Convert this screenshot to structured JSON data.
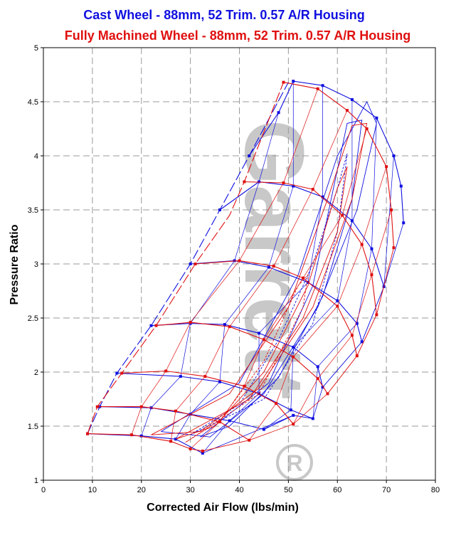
{
  "chart_data": {
    "type": "line",
    "title_line1": "Cast Wheel - 88mm, 52 Trim. 0.57 A/R Housing",
    "title_line2": "Fully Machined Wheel - 88mm, 52 Trim. 0.57 A/R Housing",
    "xlabel": "Corrected Air Flow (lbs/min)",
    "ylabel": "Pressure Ratio",
    "xlim": [
      0,
      80
    ],
    "ylim": [
      1,
      5
    ],
    "x_ticks": [
      "0",
      "10",
      "20",
      "30",
      "40",
      "50",
      "60",
      "70",
      "80"
    ],
    "y_ticks": [
      "1",
      "1.5",
      "2",
      "2.5",
      "3",
      "3.5",
      "4",
      "4.5",
      "5"
    ],
    "grid": true,
    "watermark": "Garrett",
    "watermark_mark": "R",
    "colors": {
      "cast": "#1010e0",
      "machined": "#e01010"
    },
    "series": [
      {
        "name": "Cast Wheel - 88mm, 52 Trim. 0.57 A/R Housing",
        "color": "#1010e0",
        "surge_line": [
          [
            9,
            1.43
          ],
          [
            11.5,
            1.68
          ],
          [
            15,
            1.99
          ],
          [
            22,
            2.43
          ],
          [
            30,
            3.0
          ],
          [
            36,
            3.5
          ],
          [
            42,
            4.0
          ],
          [
            50,
            4.68
          ]
        ],
        "speed_lines": [
          [
            [
              9,
              1.43
            ],
            [
              20,
              1.41
            ],
            [
              27,
              1.38
            ],
            [
              32.5,
              1.25
            ]
          ],
          [
            [
              11.5,
              1.68
            ],
            [
              22,
              1.67
            ],
            [
              30,
              1.61
            ],
            [
              38,
              1.55
            ],
            [
              45,
              1.47
            ],
            [
              51,
              1.6
            ]
          ],
          [
            [
              15,
              1.99
            ],
            [
              28,
              1.96
            ],
            [
              36,
              1.91
            ],
            [
              44,
              1.8
            ],
            [
              50.5,
              1.65
            ],
            [
              55,
              1.57
            ]
          ],
          [
            [
              22,
              2.43
            ],
            [
              30,
              2.45
            ],
            [
              37,
              2.44
            ],
            [
              44,
              2.36
            ],
            [
              51,
              2.23
            ],
            [
              56,
              2.05
            ],
            [
              57,
              1.86
            ]
          ],
          [
            [
              30,
              3.0
            ],
            [
              39,
              3.03
            ],
            [
              46,
              2.97
            ],
            [
              54,
              2.83
            ],
            [
              60,
              2.66
            ],
            [
              64,
              2.45
            ],
            [
              65,
              2.28
            ]
          ],
          [
            [
              36,
              3.5
            ],
            [
              44,
              3.76
            ],
            [
              51,
              3.72
            ],
            [
              57,
              3.62
            ],
            [
              63,
              3.4
            ],
            [
              67,
              3.14
            ],
            [
              69.5,
              2.79
            ]
          ],
          [
            [
              42,
              4.0
            ],
            [
              48,
              4.4
            ],
            [
              51,
              4.69
            ],
            [
              57,
              4.65
            ],
            [
              63,
              4.52
            ],
            [
              68,
              4.35
            ],
            [
              71.5,
              4.0
            ],
            [
              73,
              3.72
            ],
            [
              73.5,
              3.38
            ]
          ]
        ],
        "efficiency_islands": [
          [
            [
              30,
              1.42
            ],
            [
              45,
              1.75
            ],
            [
              55,
              2.45
            ],
            [
              60,
              3.3
            ],
            [
              62,
              4.02
            ],
            [
              60,
              3.7
            ],
            [
              55,
              3.0
            ],
            [
              48,
              2.3
            ],
            [
              40,
              1.7
            ],
            [
              30,
              1.42
            ]
          ],
          [
            [
              32,
              1.4
            ],
            [
              46,
              1.9
            ],
            [
              55,
              2.8
            ],
            [
              62,
              4.3
            ],
            [
              65,
              4.33
            ],
            [
              63,
              3.6
            ],
            [
              57,
              2.7
            ],
            [
              48,
              1.95
            ],
            [
              38,
              1.5
            ],
            [
              32,
              1.4
            ]
          ],
          [
            [
              24,
              1.45
            ],
            [
              40,
              1.9
            ],
            [
              52,
              2.9
            ],
            [
              60,
              4.0
            ],
            [
              66,
              4.5
            ],
            [
              68,
              4.3
            ],
            [
              64,
              3.5
            ],
            [
              56,
              2.6
            ],
            [
              45,
              1.8
            ],
            [
              34,
              1.4
            ],
            [
              24,
              1.45
            ]
          ]
        ]
      },
      {
        "name": "Fully Machined Wheel - 88mm, 52 Trim. 0.57 A/R Housing",
        "color": "#e01010",
        "surge_line": [
          [
            9,
            1.43
          ],
          [
            11,
            1.68
          ],
          [
            16,
            1.99
          ],
          [
            23,
            2.43
          ],
          [
            31,
            3.0
          ],
          [
            38,
            3.45
          ],
          [
            41,
            3.76
          ],
          [
            49,
            4.68
          ]
        ],
        "speed_lines": [
          [
            [
              9,
              1.43
            ],
            [
              18,
              1.42
            ],
            [
              26,
              1.36
            ],
            [
              30,
              1.29
            ],
            [
              32.5,
              1.27
            ]
          ],
          [
            [
              11,
              1.68
            ],
            [
              20,
              1.68
            ],
            [
              27,
              1.64
            ],
            [
              36,
              1.54
            ],
            [
              42,
              1.37
            ]
          ],
          [
            [
              16,
              1.99
            ],
            [
              25,
              2.01
            ],
            [
              33,
              1.96
            ],
            [
              41,
              1.87
            ],
            [
              47.5,
              1.71
            ],
            [
              51,
              1.52
            ]
          ],
          [
            [
              23,
              2.43
            ],
            [
              30,
              2.46
            ],
            [
              38,
              2.42
            ],
            [
              45,
              2.3
            ],
            [
              51,
              2.14
            ],
            [
              56,
              1.94
            ],
            [
              58,
              1.8
            ]
          ],
          [
            [
              31,
              3.0
            ],
            [
              40,
              3.03
            ],
            [
              47,
              2.98
            ],
            [
              53,
              2.87
            ],
            [
              60,
              2.61
            ],
            [
              63,
              2.34
            ],
            [
              64,
              2.15
            ]
          ],
          [
            [
              41,
              3.76
            ],
            [
              49,
              3.75
            ],
            [
              55,
              3.69
            ],
            [
              61,
              3.45
            ],
            [
              65,
              3.18
            ],
            [
              67,
              2.9
            ],
            [
              68,
              2.53
            ]
          ],
          [
            [
              49,
              4.68
            ],
            [
              56,
              4.62
            ],
            [
              62,
              4.42
            ],
            [
              66,
              4.25
            ],
            [
              70,
              3.9
            ],
            [
              71,
              3.5
            ],
            [
              71.5,
              3.15
            ]
          ]
        ],
        "efficiency_islands": [
          [
            [
              29,
              1.35
            ],
            [
              44,
              1.8
            ],
            [
              53,
              2.6
            ],
            [
              54,
              2.9
            ],
            [
              52,
              2.8
            ],
            [
              45,
              2.1
            ],
            [
              36,
              1.55
            ],
            [
              29,
              1.35
            ]
          ],
          [
            [
              27,
              1.38
            ],
            [
              42,
              1.75
            ],
            [
              53,
              2.5
            ],
            [
              60,
              3.3
            ],
            [
              62,
              3.9
            ],
            [
              60,
              3.7
            ],
            [
              54,
              2.8
            ],
            [
              45,
              2.0
            ],
            [
              35,
              1.5
            ],
            [
              27,
              1.38
            ]
          ],
          [
            [
              22,
              1.42
            ],
            [
              38,
              1.8
            ],
            [
              50,
              2.6
            ],
            [
              58,
              3.6
            ],
            [
              63,
              4.28
            ],
            [
              66,
              4.3
            ],
            [
              63,
              3.6
            ],
            [
              55,
              2.6
            ],
            [
              44,
              1.85
            ],
            [
              32,
              1.45
            ],
            [
              22,
              1.42
            ]
          ]
        ]
      }
    ]
  }
}
